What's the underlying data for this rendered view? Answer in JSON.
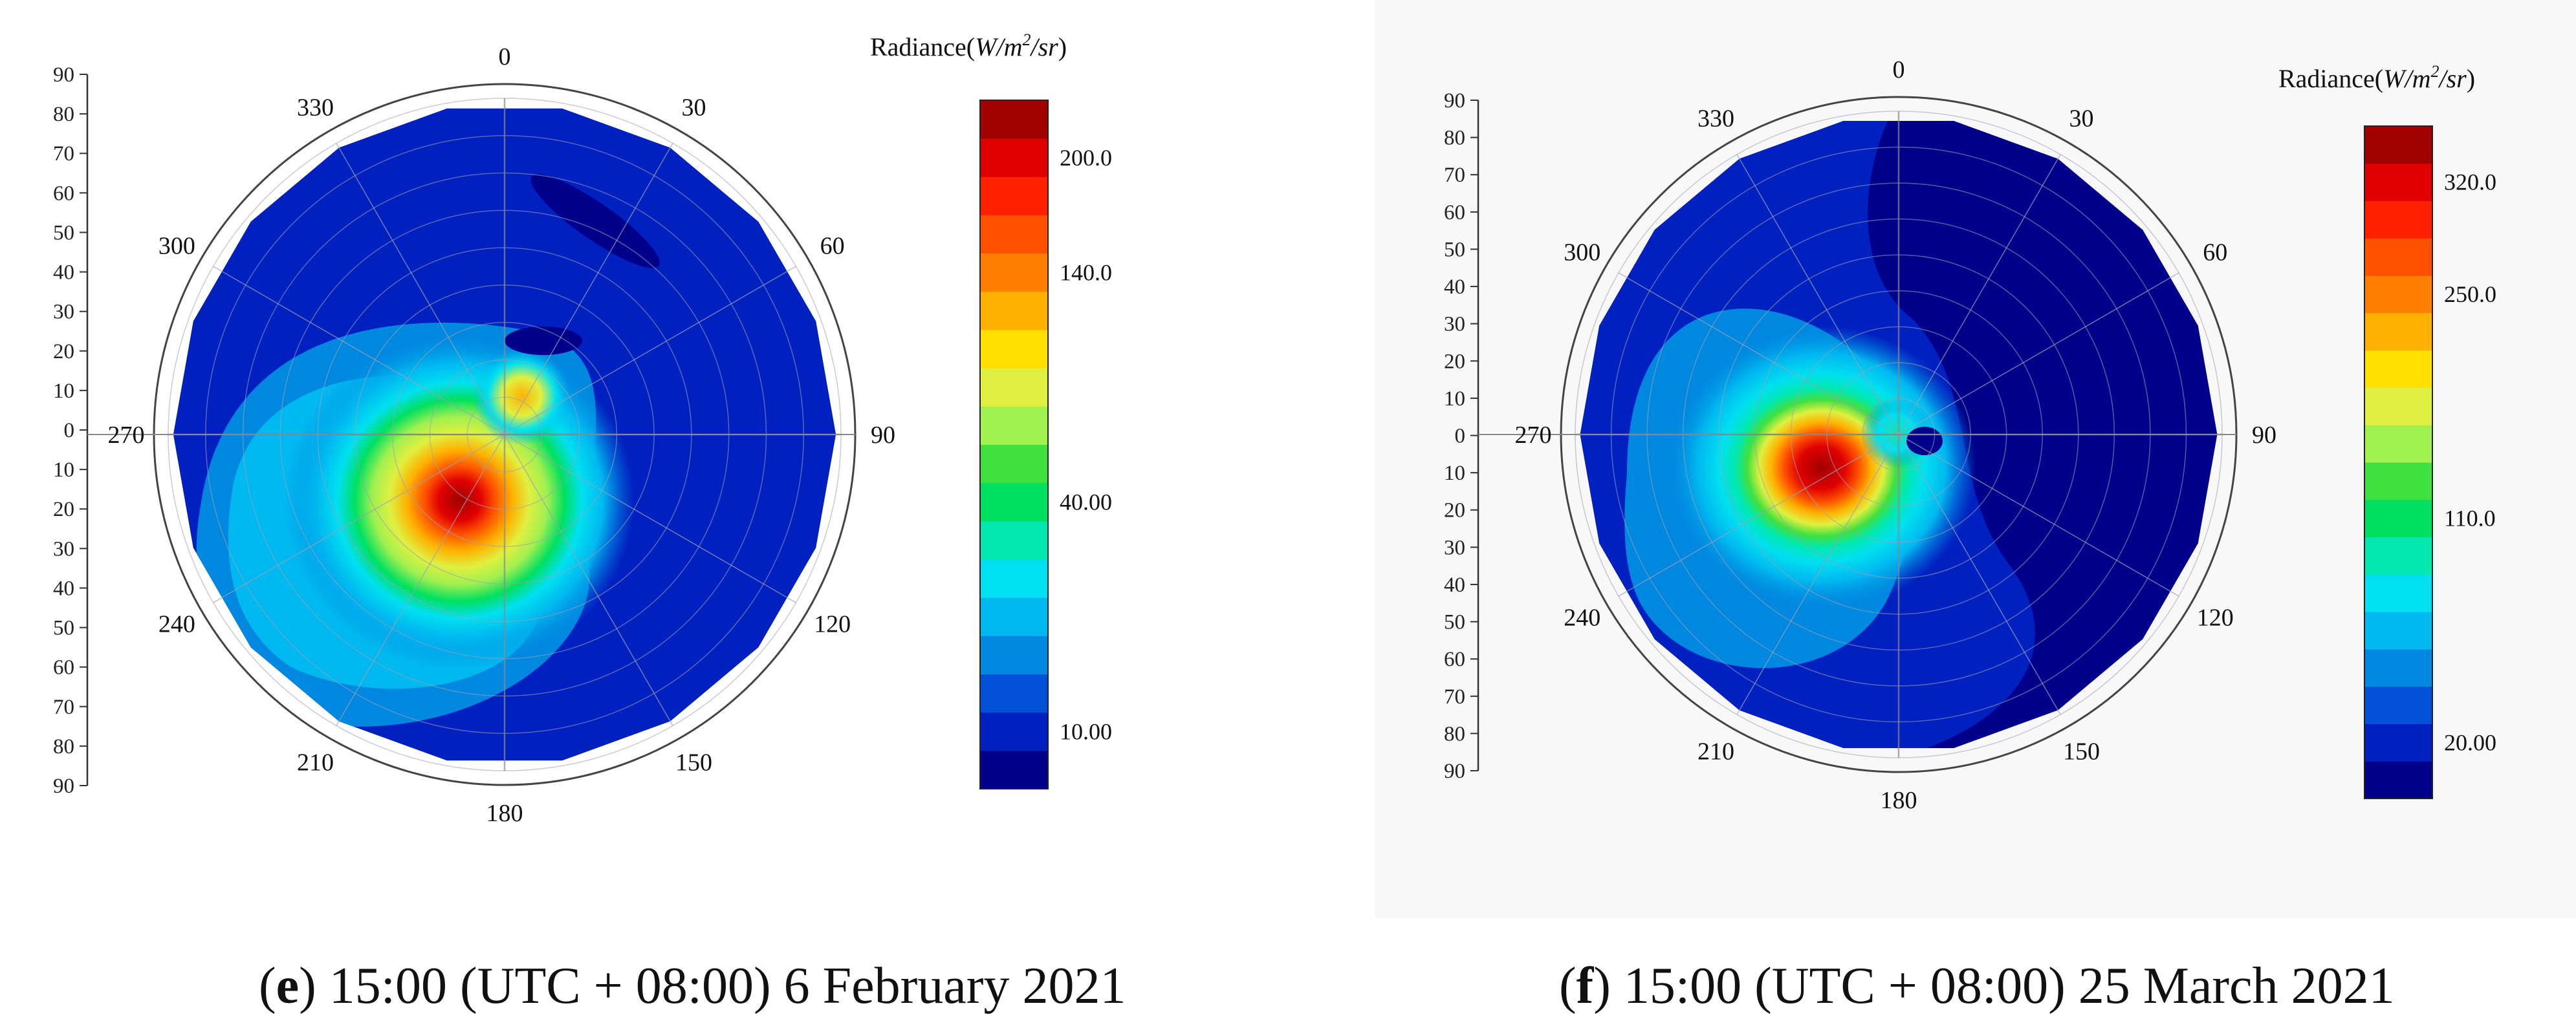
{
  "chart_data": [
    {
      "type": "heatmap",
      "subtype": "polar-contour",
      "panel": "e",
      "caption_letter": "e",
      "caption_text": " 15:00 (UTC + 08:00) 6 February 2021",
      "colorbar_title_prefix": "Radiance(",
      "colorbar_title_unit": "W/m",
      "colorbar_title_sup": "2",
      "colorbar_title_suffix": "/sr",
      "colorbar_title_close": ")",
      "colorbar_ticks": [
        "200.0",
        "140.0",
        "40.00",
        "10.00"
      ],
      "colorbar_tick_values": [
        200,
        140,
        40,
        10
      ],
      "colorbar_colors": [
        "#00008b",
        "#0020c0",
        "#0050d8",
        "#0088e0",
        "#00b8f0",
        "#00e0f0",
        "#00e8b0",
        "#00e060",
        "#40e040",
        "#a0f050",
        "#e0f040",
        "#ffe000",
        "#ffb000",
        "#ff8000",
        "#ff5000",
        "#ff2000",
        "#e00000",
        "#a00000"
      ],
      "azimuth_labels": [
        "0",
        "30",
        "60",
        "90",
        "120",
        "150",
        "180",
        "210",
        "240",
        "270",
        "300",
        "330"
      ],
      "zenith_ticks_upper": [
        "90",
        "80",
        "70",
        "60",
        "50",
        "40",
        "30",
        "20",
        "10",
        "0"
      ],
      "zenith_ticks_lower": [
        "10",
        "20",
        "30",
        "40",
        "50",
        "60",
        "70",
        "80",
        "90"
      ],
      "zenith_range": [
        0,
        90
      ],
      "peak_region": {
        "azimuth_deg": 215,
        "zenith_deg": 30,
        "value": 200
      },
      "secondary_peak": {
        "azimuth_deg": 25,
        "zenith_deg": 15,
        "value": 140
      }
    },
    {
      "type": "heatmap",
      "subtype": "polar-contour",
      "panel": "f",
      "caption_letter": "f",
      "caption_text": " 15:00 (UTC + 08:00) 25 March 2021",
      "colorbar_title_prefix": "Radiance(",
      "colorbar_title_unit": "W/m",
      "colorbar_title_sup": "2",
      "colorbar_title_suffix": "/sr",
      "colorbar_title_close": ")",
      "colorbar_ticks": [
        "320.0",
        "250.0",
        "110.0",
        "20.00"
      ],
      "colorbar_tick_values": [
        320,
        250,
        110,
        20
      ],
      "colorbar_colors": [
        "#00008b",
        "#0020c0",
        "#0050d8",
        "#0088e0",
        "#00b8f0",
        "#00e0f0",
        "#00e8b0",
        "#00e060",
        "#40e040",
        "#a0f050",
        "#e0f040",
        "#ffe000",
        "#ffb000",
        "#ff8000",
        "#ff5000",
        "#ff2000",
        "#e00000",
        "#a00000"
      ],
      "azimuth_labels": [
        "0",
        "30",
        "60",
        "90",
        "120",
        "150",
        "180",
        "210",
        "240",
        "270",
        "300",
        "330"
      ],
      "zenith_ticks_upper": [
        "90",
        "80",
        "70",
        "60",
        "50",
        "40",
        "30",
        "20",
        "10",
        "0"
      ],
      "zenith_ticks_lower": [
        "10",
        "20",
        "30",
        "40",
        "50",
        "60",
        "70",
        "80",
        "90"
      ],
      "zenith_range": [
        0,
        90
      ],
      "peak_region": {
        "azimuth_deg": 235,
        "zenith_deg": 35,
        "value": 320
      },
      "secondary_peak": {
        "azimuth_deg": 40,
        "zenith_deg": 10,
        "value": 110
      }
    }
  ]
}
